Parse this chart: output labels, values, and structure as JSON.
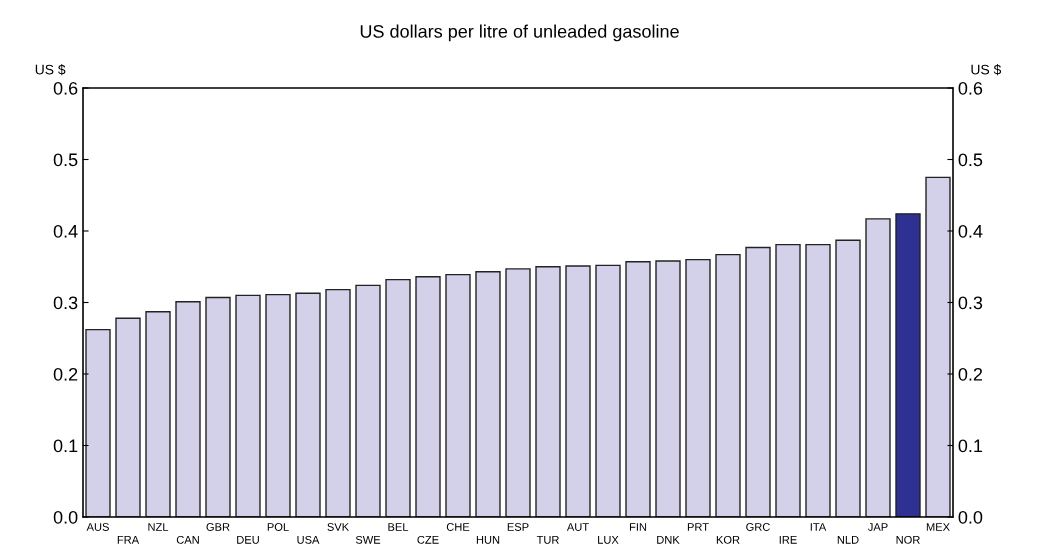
{
  "chart_data": {
    "type": "bar",
    "title": "US dollars per litre of unleaded gasoline",
    "ylabel": "US $",
    "y2label": "US $",
    "categories": [
      "AUS",
      "FRA",
      "NZL",
      "CAN",
      "GBR",
      "DEU",
      "POL",
      "USA",
      "SVK",
      "SWE",
      "BEL",
      "CZE",
      "CHE",
      "HUN",
      "ESP",
      "TUR",
      "AUT",
      "LUX",
      "FIN",
      "DNK",
      "PRT",
      "KOR",
      "GRC",
      "IRE",
      "ITA",
      "NLD",
      "JAP",
      "NOR",
      "MEX"
    ],
    "values": [
      0.262,
      0.278,
      0.287,
      0.301,
      0.307,
      0.31,
      0.311,
      0.313,
      0.318,
      0.324,
      0.332,
      0.336,
      0.339,
      0.343,
      0.347,
      0.35,
      0.351,
      0.352,
      0.357,
      0.358,
      0.36,
      0.367,
      0.377,
      0.381,
      0.381,
      0.387,
      0.417,
      0.424,
      0.475
    ],
    "colors": [
      "#d3d1ea",
      "#d3d1ea",
      "#d3d1ea",
      "#d3d1ea",
      "#d3d1ea",
      "#d3d1ea",
      "#d3d1ea",
      "#d3d1ea",
      "#d3d1ea",
      "#d3d1ea",
      "#d3d1ea",
      "#d3d1ea",
      "#d3d1ea",
      "#d3d1ea",
      "#d3d1ea",
      "#d3d1ea",
      "#d3d1ea",
      "#d3d1ea",
      "#d3d1ea",
      "#d3d1ea",
      "#d3d1ea",
      "#d3d1ea",
      "#d3d1ea",
      "#d3d1ea",
      "#d3d1ea",
      "#d3d1ea",
      "#d3d1ea",
      "#2e3192",
      "#d3d1ea"
    ],
    "ylim": [
      0,
      0.6
    ],
    "yticks": [
      {
        "value": 0,
        "label": "0.0"
      },
      0.1,
      0.2,
      0.3,
      0.4,
      0.5,
      0.6
    ],
    "y2lim": [
      0,
      0.6
    ],
    "y2ticks": [
      {
        "value": 0,
        "label": "0.0"
      },
      0.1,
      0.2,
      0.3,
      0.4,
      0.5,
      0.6
    ],
    "grid": false,
    "legend": false
  }
}
